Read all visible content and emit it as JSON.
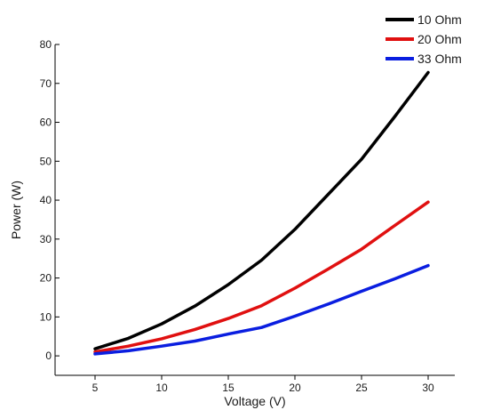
{
  "chart_data": {
    "type": "line",
    "title": "",
    "xlabel": "Voltage (V)",
    "ylabel": "Power (W)",
    "xlim": [
      2,
      32
    ],
    "ylim": [
      -5,
      80
    ],
    "xticks": [
      5,
      10,
      15,
      20,
      25,
      30
    ],
    "yticks": [
      0,
      10,
      20,
      30,
      40,
      50,
      60,
      70,
      80
    ],
    "grid": false,
    "legend_position": "top-right",
    "series": [
      {
        "name": "10 Ohm",
        "color": "#000000",
        "x": [
          5,
          7.5,
          10,
          12.5,
          15,
          17.5,
          20,
          22.5,
          25,
          27.5,
          30
        ],
        "y": [
          1.8,
          4.5,
          8.2,
          12.8,
          18.3,
          24.6,
          32.5,
          41.5,
          50.5,
          61.5,
          72.8
        ]
      },
      {
        "name": "20 Ohm",
        "color": "#e01010",
        "x": [
          5,
          7.5,
          10,
          12.5,
          15,
          17.5,
          20,
          22.5,
          25,
          27.5,
          30
        ],
        "y": [
          1.0,
          2.5,
          4.4,
          6.8,
          9.6,
          12.9,
          17.4,
          22.3,
          27.4,
          33.5,
          39.5
        ]
      },
      {
        "name": "33 Ohm",
        "color": "#0a1ee0",
        "x": [
          5,
          7.5,
          10,
          12.5,
          15,
          17.5,
          20,
          22.5,
          25,
          27.5,
          30
        ],
        "y": [
          0.5,
          1.3,
          2.5,
          3.8,
          5.6,
          7.3,
          10.2,
          13.3,
          16.6,
          19.8,
          23.2
        ]
      }
    ]
  }
}
